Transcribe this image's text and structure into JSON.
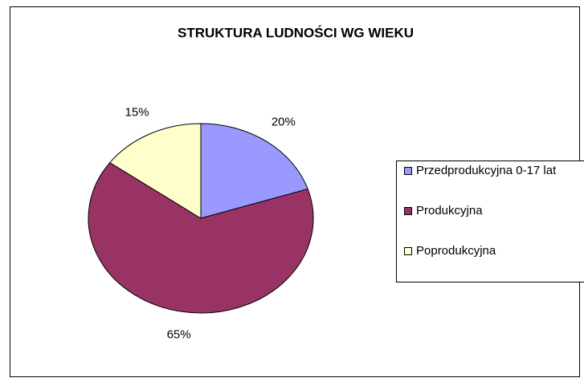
{
  "chart_data": {
    "type": "pie",
    "title": "STRUKTURA LUDNOŚCI WG WIEKU",
    "categories": [
      "Przedprodukcyjna 0-17 lat",
      "Produkcyjna",
      "Poprodukcyjna"
    ],
    "values": [
      20,
      65,
      15
    ],
    "value_labels": [
      "20%",
      "65%",
      "15%"
    ],
    "colors": [
      "#9999ff",
      "#993366",
      "#ffffcc"
    ],
    "legend": "right"
  }
}
